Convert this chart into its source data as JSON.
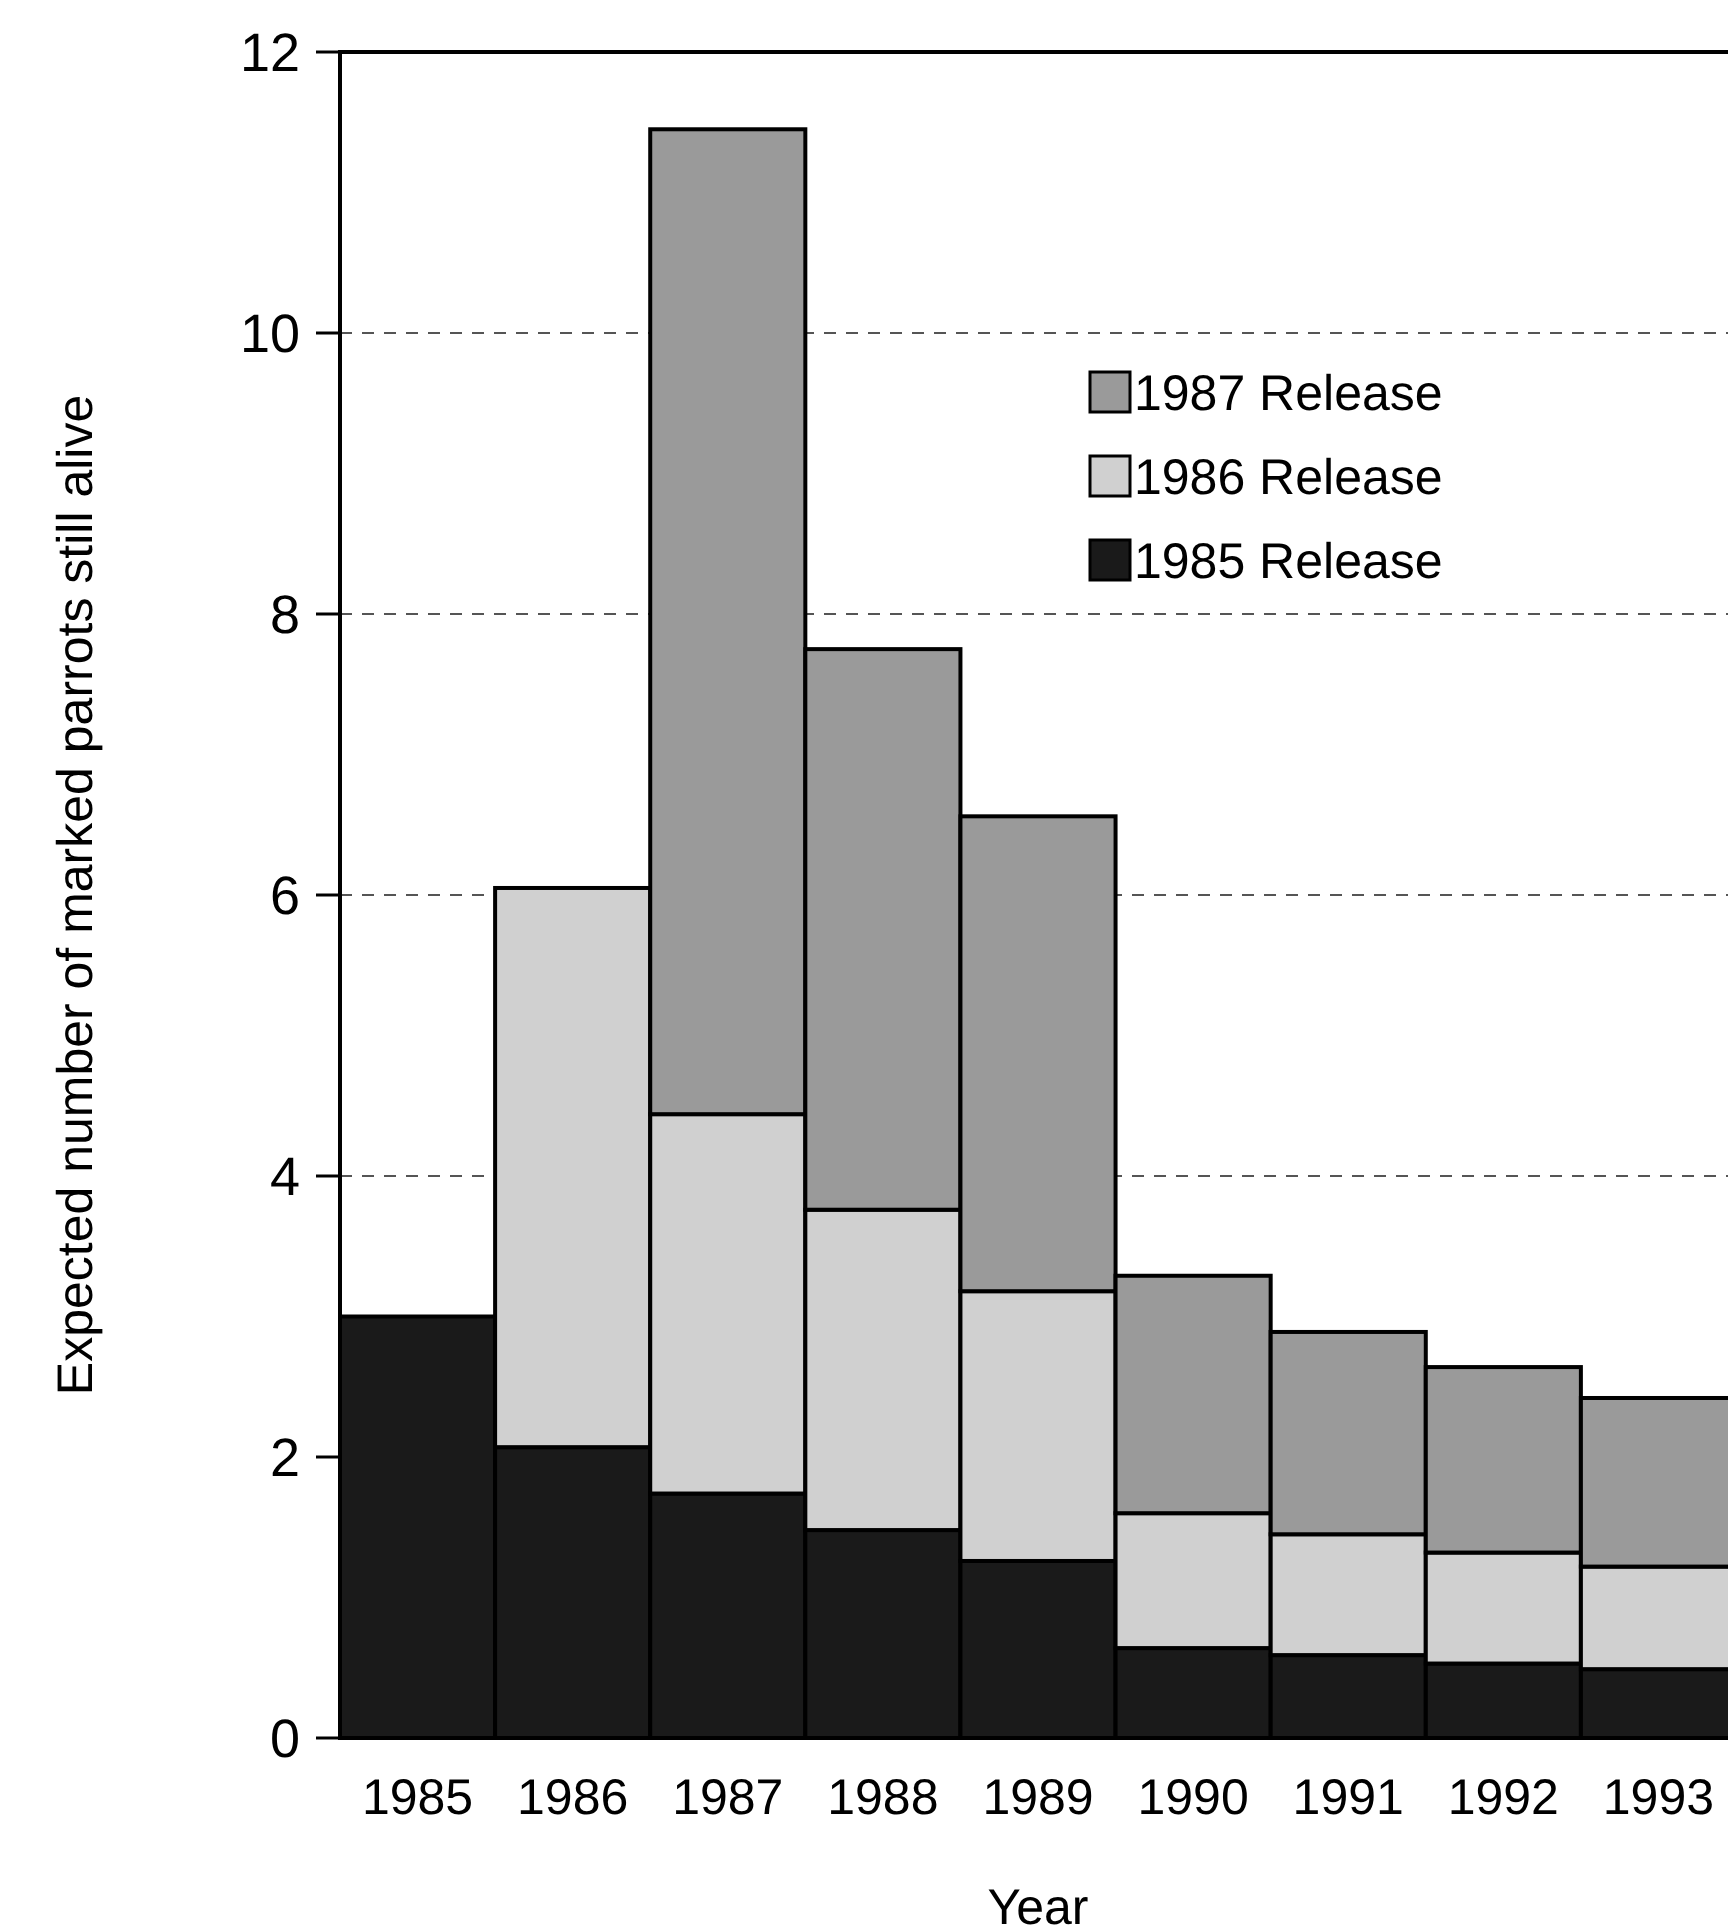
{
  "chart_data": {
    "type": "bar",
    "stacked": true,
    "xlabel": "Year",
    "ylabel": "Expected number of marked parrots still alive",
    "categories": [
      "1985",
      "1986",
      "1987",
      "1988",
      "1989",
      "1990",
      "1991",
      "1992",
      "1993"
    ],
    "series": [
      {
        "name": "1985 Release",
        "color": "#1a1a1a",
        "values": [
          3.0,
          2.07,
          1.74,
          1.48,
          1.26,
          0.64,
          0.59,
          0.53,
          0.49
        ]
      },
      {
        "name": "1986 Release",
        "color": "#d0d0d0",
        "values": [
          null,
          3.98,
          2.7,
          2.28,
          1.92,
          0.96,
          0.86,
          0.79,
          0.73
        ]
      },
      {
        "name": "1987 Release",
        "color": "#9a9a9a",
        "values": [
          null,
          null,
          7.01,
          3.99,
          3.38,
          1.69,
          1.44,
          1.32,
          1.2
        ]
      }
    ],
    "ylim": [
      0,
      12
    ],
    "yticks": [
      0,
      2,
      4,
      6,
      8,
      10,
      12
    ],
    "grid": "y",
    "legend": "top right"
  }
}
